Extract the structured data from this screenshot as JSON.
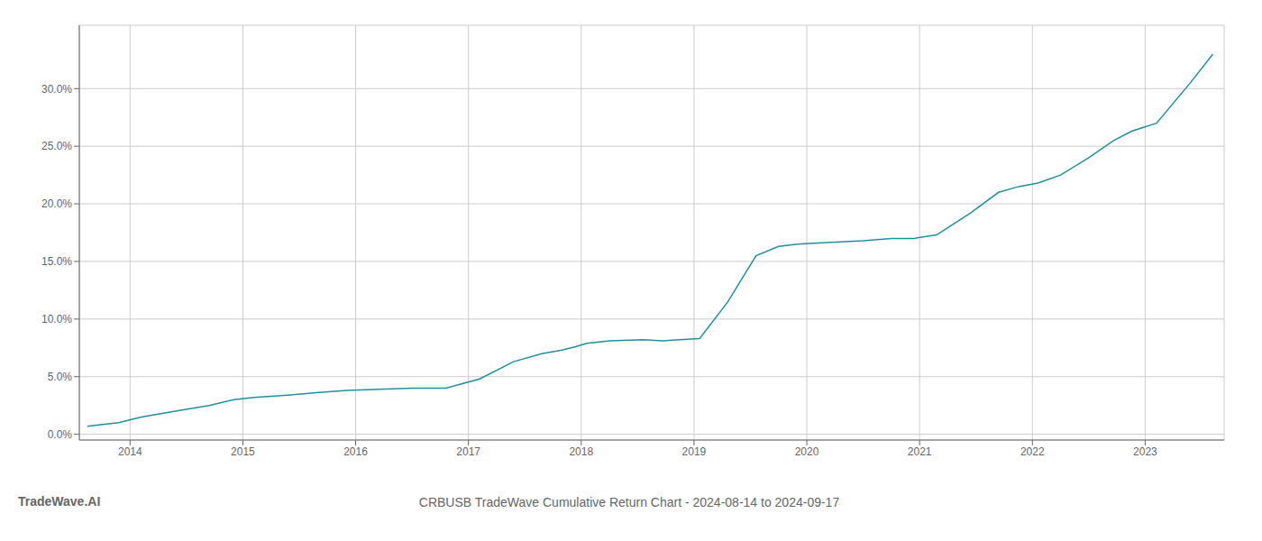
{
  "chart_data": {
    "type": "line",
    "title": "CRBUSB TradeWave Cumulative Return Chart - 2024-08-14 to 2024-09-17",
    "annotations": [
      "TradeWave.AI"
    ],
    "color": "#2090a0",
    "grid": true,
    "x": [
      2013.62,
      2013.9,
      2014.1,
      2014.4,
      2014.7,
      2014.92,
      2015.1,
      2015.4,
      2015.65,
      2015.92,
      2016.2,
      2016.5,
      2016.8,
      2017.1,
      2017.4,
      2017.65,
      2017.83,
      2017.95,
      2018.05,
      2018.25,
      2018.55,
      2018.72,
      2018.87,
      2019.05,
      2019.3,
      2019.55,
      2019.75,
      2019.92,
      2020.1,
      2020.3,
      2020.5,
      2020.75,
      2020.95,
      2021.15,
      2021.45,
      2021.7,
      2021.88,
      2022.05,
      2022.25,
      2022.5,
      2022.72,
      2022.88,
      2023.1,
      2023.4,
      2023.6
    ],
    "values": [
      0.007,
      0.01,
      0.015,
      0.02,
      0.025,
      0.03,
      0.032,
      0.034,
      0.036,
      0.038,
      0.039,
      0.04,
      0.04,
      0.048,
      0.063,
      0.07,
      0.073,
      0.076,
      0.079,
      0.081,
      0.082,
      0.081,
      0.082,
      0.083,
      0.115,
      0.155,
      0.163,
      0.165,
      0.166,
      0.167,
      0.168,
      0.17,
      0.17,
      0.173,
      0.192,
      0.21,
      0.215,
      0.218,
      0.225,
      0.24,
      0.255,
      0.263,
      0.27,
      0.305,
      0.33
    ],
    "xlim": [
      2013.55,
      2023.7
    ],
    "xticks": [
      2014,
      2015,
      2016,
      2017,
      2018,
      2019,
      2020,
      2021,
      2022,
      2023
    ],
    "ylim": [
      -0.005,
      0.355
    ],
    "yticks": [
      {
        "value": 0.0,
        "label": "0.0%"
      },
      {
        "value": 0.05,
        "label": "5.0%"
      },
      {
        "value": 0.1,
        "label": "10.0%"
      },
      {
        "value": 0.15,
        "label": "15.0%"
      },
      {
        "value": 0.2,
        "label": "20.0%"
      },
      {
        "value": 0.25,
        "label": "25.0%"
      },
      {
        "value": 0.3,
        "label": "30.0%"
      }
    ]
  }
}
